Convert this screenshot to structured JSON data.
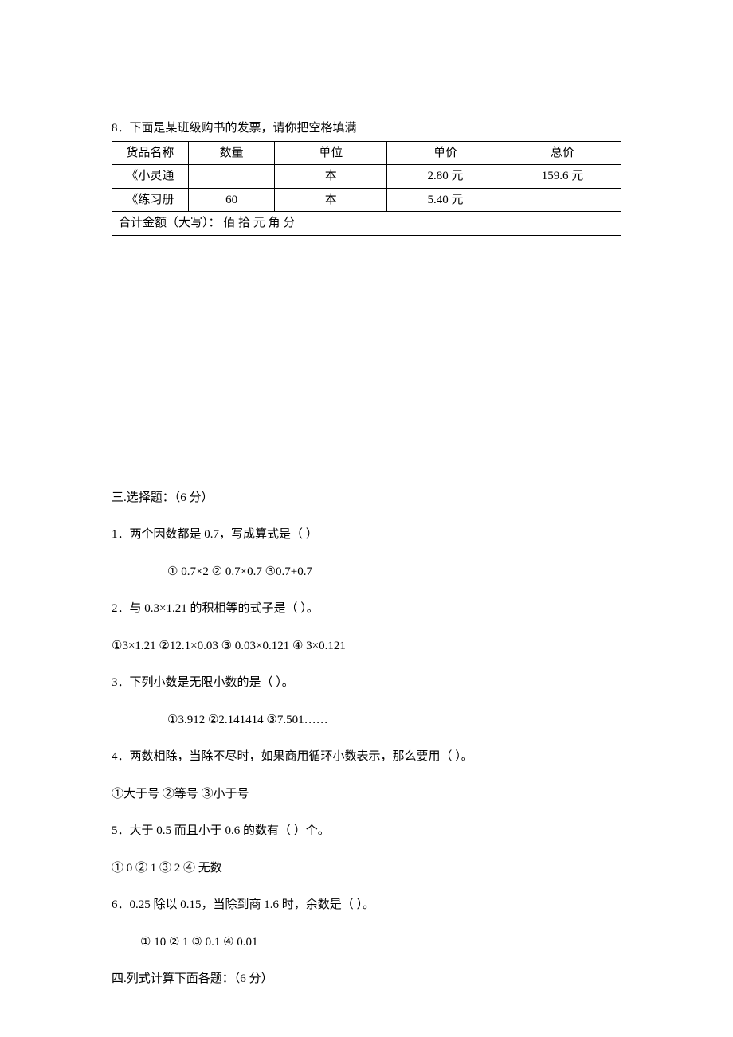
{
  "q8": {
    "title": "8．下面是某班级购书的发票，请你把空格填满",
    "table": {
      "headers": [
        "货品名称",
        "数量",
        "单位",
        "单价",
        "总价"
      ],
      "rows": [
        [
          "《小灵通",
          "",
          "本",
          "2.80 元",
          "159.6 元"
        ],
        [
          "《练习册",
          "60",
          "本",
          "5.40 元",
          ""
        ]
      ],
      "merged": "合计金额（大写）： 佰 拾 元 角 分"
    }
  },
  "section3": {
    "heading": "三.选择题：（6 分）",
    "items": [
      {
        "q": "1．两个因数都是 0.7，写成算式是（ ）",
        "opts": "① 0.7×2 ② 0.7×0.7 ③0.7+0.7",
        "opts_indent": "indent"
      },
      {
        "q": "2．与 0.3×1.21 的积相等的式子是（ ）。",
        "opts": "①3×1.21 ②12.1×0.03 ③ 0.03×0.121 ④ 3×0.121",
        "opts_indent": "none"
      },
      {
        "q": "3．下列小数是无限小数的是（ ）。",
        "opts": "①3.912 ②2.141414 ③7.501……",
        "opts_indent": "indent"
      },
      {
        "q": "4．两数相除，当除不尽时，如果商用循环小数表示，那么要用（ ）。",
        "opts": "①大于号 ②等号 ③小于号",
        "opts_indent": "none"
      },
      {
        "q": "5．大于 0.5 而且小于 0.6 的数有（ ）个。",
        "opts": "① 0 ② 1 ③ 2 ④ 无数",
        "opts_indent": "none"
      },
      {
        "q": "6．0.25 除以 0.15，当除到商 1.6 时，余数是（ ）。",
        "opts": "① 10 ② 1 ③ 0.1 ④ 0.01",
        "opts_indent": "small"
      }
    ]
  },
  "section4": {
    "heading": "四.列式计算下面各题：（6 分）"
  },
  "colors": {
    "text": "#000000",
    "background": "#ffffff",
    "border": "#000000"
  },
  "fonts": {
    "family": "SimSun",
    "size_pt": 11,
    "line_height": 1.5
  }
}
